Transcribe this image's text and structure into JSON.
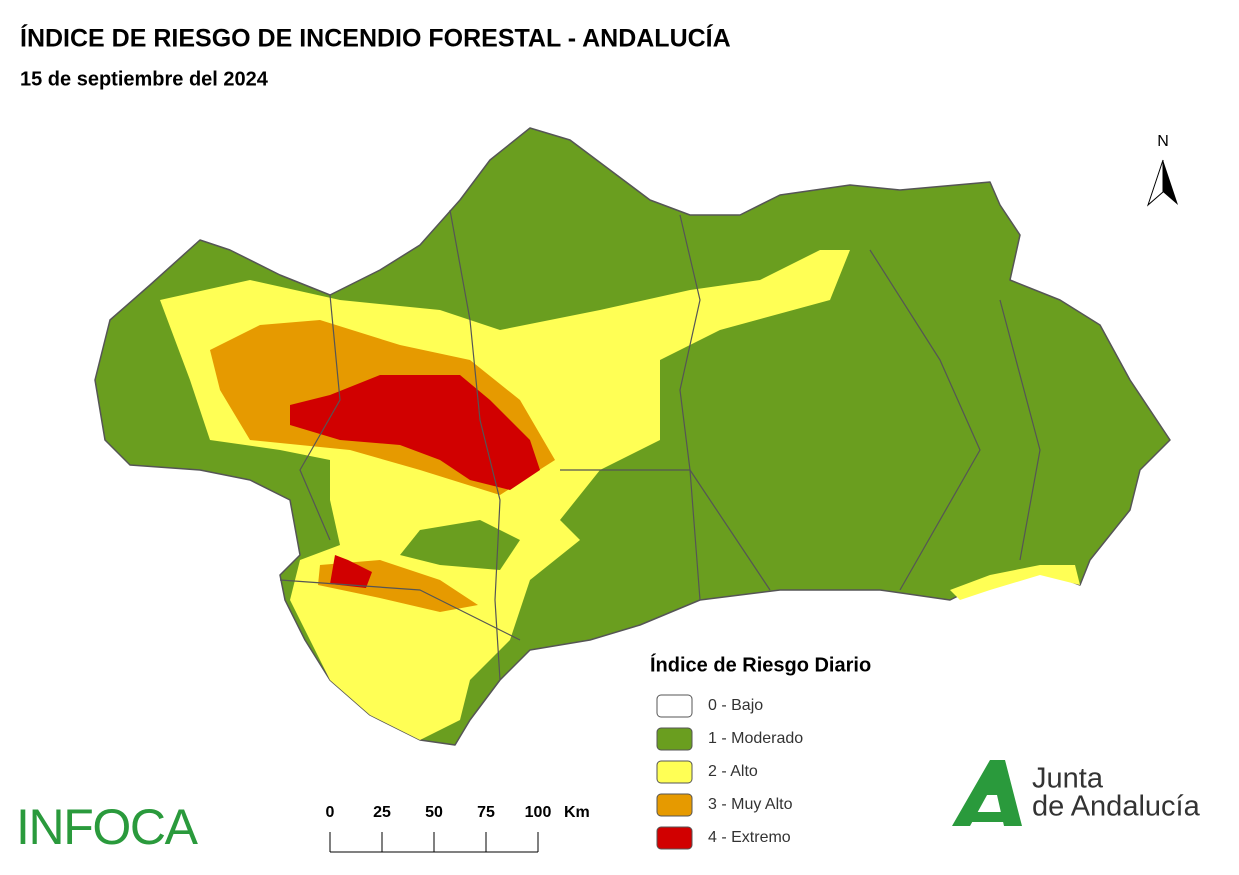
{
  "header": {
    "title": "ÍNDICE DE RIESGO DE INCENDIO FORESTAL - ANDALUCÍA",
    "subtitle": "15 de septiembre del 2024"
  },
  "legend": {
    "title": "Índice de Riesgo Diario",
    "items": [
      {
        "label": "0 - Bajo",
        "color": "#ffffff"
      },
      {
        "label": "1 - Moderado",
        "color": "#6a9e1f"
      },
      {
        "label": "2 - Alto",
        "color": "#ffff55"
      },
      {
        "label": "3 - Muy Alto",
        "color": "#e69a00"
      },
      {
        "label": "4 - Extremo",
        "color": "#d10000"
      }
    ]
  },
  "scale_bar": {
    "ticks": [
      0,
      25,
      50,
      75,
      100
    ],
    "unit": "Km"
  },
  "north": "N",
  "logos": {
    "infoca": "INFOCA",
    "junta": [
      "Junta",
      "de Andalucía"
    ]
  }
}
